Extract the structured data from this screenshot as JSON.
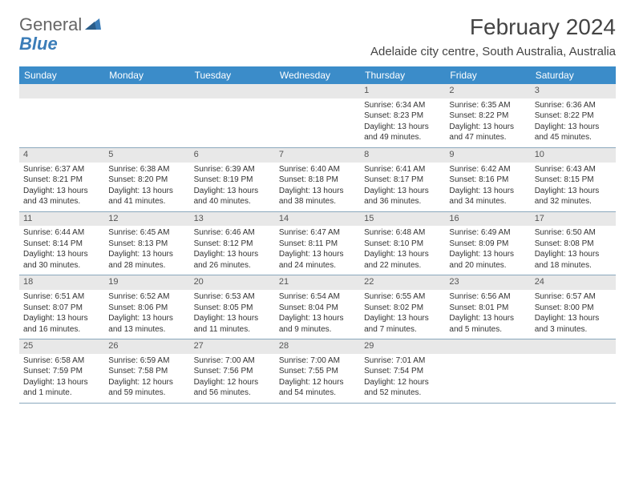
{
  "logo": {
    "text1": "General",
    "text2": "Blue"
  },
  "header": {
    "month_title": "February 2024",
    "subtitle": "Adelaide city centre, South Australia, Australia"
  },
  "colors": {
    "header_bg": "#3b8cc9",
    "header_text": "#ffffff",
    "daynum_bg": "#e8e8e8",
    "divider": "#8aa8bd",
    "logo_gray": "#666666",
    "logo_blue": "#3b7db8",
    "text": "#333333"
  },
  "day_names": [
    "Sunday",
    "Monday",
    "Tuesday",
    "Wednesday",
    "Thursday",
    "Friday",
    "Saturday"
  ],
  "weeks": [
    [
      null,
      null,
      null,
      null,
      {
        "d": "1",
        "sr": "Sunrise: 6:34 AM",
        "ss": "Sunset: 8:23 PM",
        "dl1": "Daylight: 13 hours",
        "dl2": "and 49 minutes."
      },
      {
        "d": "2",
        "sr": "Sunrise: 6:35 AM",
        "ss": "Sunset: 8:22 PM",
        "dl1": "Daylight: 13 hours",
        "dl2": "and 47 minutes."
      },
      {
        "d": "3",
        "sr": "Sunrise: 6:36 AM",
        "ss": "Sunset: 8:22 PM",
        "dl1": "Daylight: 13 hours",
        "dl2": "and 45 minutes."
      }
    ],
    [
      {
        "d": "4",
        "sr": "Sunrise: 6:37 AM",
        "ss": "Sunset: 8:21 PM",
        "dl1": "Daylight: 13 hours",
        "dl2": "and 43 minutes."
      },
      {
        "d": "5",
        "sr": "Sunrise: 6:38 AM",
        "ss": "Sunset: 8:20 PM",
        "dl1": "Daylight: 13 hours",
        "dl2": "and 41 minutes."
      },
      {
        "d": "6",
        "sr": "Sunrise: 6:39 AM",
        "ss": "Sunset: 8:19 PM",
        "dl1": "Daylight: 13 hours",
        "dl2": "and 40 minutes."
      },
      {
        "d": "7",
        "sr": "Sunrise: 6:40 AM",
        "ss": "Sunset: 8:18 PM",
        "dl1": "Daylight: 13 hours",
        "dl2": "and 38 minutes."
      },
      {
        "d": "8",
        "sr": "Sunrise: 6:41 AM",
        "ss": "Sunset: 8:17 PM",
        "dl1": "Daylight: 13 hours",
        "dl2": "and 36 minutes."
      },
      {
        "d": "9",
        "sr": "Sunrise: 6:42 AM",
        "ss": "Sunset: 8:16 PM",
        "dl1": "Daylight: 13 hours",
        "dl2": "and 34 minutes."
      },
      {
        "d": "10",
        "sr": "Sunrise: 6:43 AM",
        "ss": "Sunset: 8:15 PM",
        "dl1": "Daylight: 13 hours",
        "dl2": "and 32 minutes."
      }
    ],
    [
      {
        "d": "11",
        "sr": "Sunrise: 6:44 AM",
        "ss": "Sunset: 8:14 PM",
        "dl1": "Daylight: 13 hours",
        "dl2": "and 30 minutes."
      },
      {
        "d": "12",
        "sr": "Sunrise: 6:45 AM",
        "ss": "Sunset: 8:13 PM",
        "dl1": "Daylight: 13 hours",
        "dl2": "and 28 minutes."
      },
      {
        "d": "13",
        "sr": "Sunrise: 6:46 AM",
        "ss": "Sunset: 8:12 PM",
        "dl1": "Daylight: 13 hours",
        "dl2": "and 26 minutes."
      },
      {
        "d": "14",
        "sr": "Sunrise: 6:47 AM",
        "ss": "Sunset: 8:11 PM",
        "dl1": "Daylight: 13 hours",
        "dl2": "and 24 minutes."
      },
      {
        "d": "15",
        "sr": "Sunrise: 6:48 AM",
        "ss": "Sunset: 8:10 PM",
        "dl1": "Daylight: 13 hours",
        "dl2": "and 22 minutes."
      },
      {
        "d": "16",
        "sr": "Sunrise: 6:49 AM",
        "ss": "Sunset: 8:09 PM",
        "dl1": "Daylight: 13 hours",
        "dl2": "and 20 minutes."
      },
      {
        "d": "17",
        "sr": "Sunrise: 6:50 AM",
        "ss": "Sunset: 8:08 PM",
        "dl1": "Daylight: 13 hours",
        "dl2": "and 18 minutes."
      }
    ],
    [
      {
        "d": "18",
        "sr": "Sunrise: 6:51 AM",
        "ss": "Sunset: 8:07 PM",
        "dl1": "Daylight: 13 hours",
        "dl2": "and 16 minutes."
      },
      {
        "d": "19",
        "sr": "Sunrise: 6:52 AM",
        "ss": "Sunset: 8:06 PM",
        "dl1": "Daylight: 13 hours",
        "dl2": "and 13 minutes."
      },
      {
        "d": "20",
        "sr": "Sunrise: 6:53 AM",
        "ss": "Sunset: 8:05 PM",
        "dl1": "Daylight: 13 hours",
        "dl2": "and 11 minutes."
      },
      {
        "d": "21",
        "sr": "Sunrise: 6:54 AM",
        "ss": "Sunset: 8:04 PM",
        "dl1": "Daylight: 13 hours",
        "dl2": "and 9 minutes."
      },
      {
        "d": "22",
        "sr": "Sunrise: 6:55 AM",
        "ss": "Sunset: 8:02 PM",
        "dl1": "Daylight: 13 hours",
        "dl2": "and 7 minutes."
      },
      {
        "d": "23",
        "sr": "Sunrise: 6:56 AM",
        "ss": "Sunset: 8:01 PM",
        "dl1": "Daylight: 13 hours",
        "dl2": "and 5 minutes."
      },
      {
        "d": "24",
        "sr": "Sunrise: 6:57 AM",
        "ss": "Sunset: 8:00 PM",
        "dl1": "Daylight: 13 hours",
        "dl2": "and 3 minutes."
      }
    ],
    [
      {
        "d": "25",
        "sr": "Sunrise: 6:58 AM",
        "ss": "Sunset: 7:59 PM",
        "dl1": "Daylight: 13 hours",
        "dl2": "and 1 minute."
      },
      {
        "d": "26",
        "sr": "Sunrise: 6:59 AM",
        "ss": "Sunset: 7:58 PM",
        "dl1": "Daylight: 12 hours",
        "dl2": "and 59 minutes."
      },
      {
        "d": "27",
        "sr": "Sunrise: 7:00 AM",
        "ss": "Sunset: 7:56 PM",
        "dl1": "Daylight: 12 hours",
        "dl2": "and 56 minutes."
      },
      {
        "d": "28",
        "sr": "Sunrise: 7:00 AM",
        "ss": "Sunset: 7:55 PM",
        "dl1": "Daylight: 12 hours",
        "dl2": "and 54 minutes."
      },
      {
        "d": "29",
        "sr": "Sunrise: 7:01 AM",
        "ss": "Sunset: 7:54 PM",
        "dl1": "Daylight: 12 hours",
        "dl2": "and 52 minutes."
      },
      null,
      null
    ]
  ]
}
